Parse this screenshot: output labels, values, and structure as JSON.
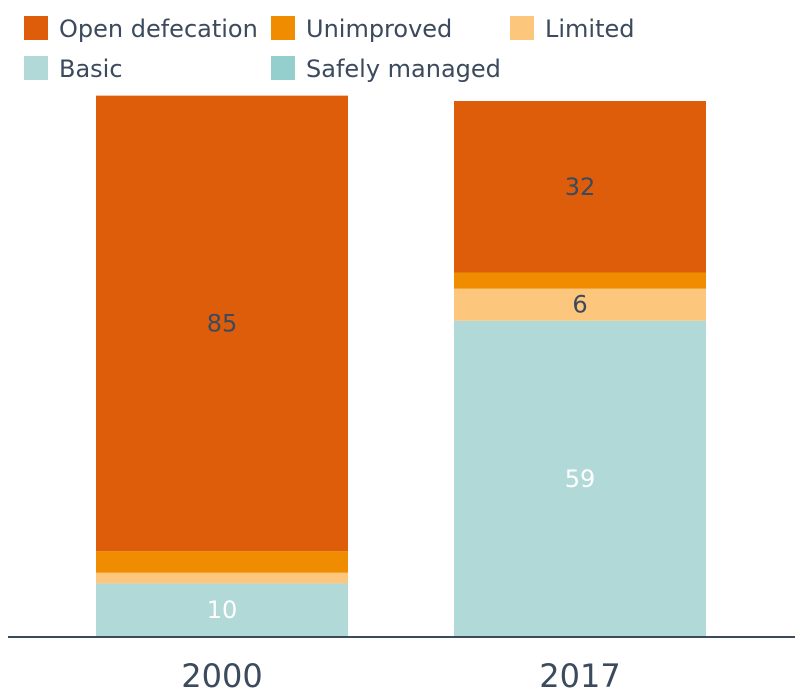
{
  "chart_data": {
    "type": "bar",
    "stacked": true,
    "categories": [
      "2000",
      "2017"
    ],
    "series": [
      {
        "name": "Safely managed",
        "color": "#94cfcd",
        "values": [
          0,
          0
        ]
      },
      {
        "name": "Basic",
        "color": "#b1d9d8",
        "values": [
          10,
          59
        ]
      },
      {
        "name": "Limited",
        "color": "#fcc67d",
        "values": [
          2,
          6
        ]
      },
      {
        "name": "Unimproved",
        "color": "#f08c00",
        "values": [
          4,
          3
        ]
      },
      {
        "name": "Open defecation",
        "color": "#de5d0a",
        "values": [
          85,
          32
        ]
      }
    ],
    "data_labels": [
      {
        "category": "2000",
        "series": "Open defecation",
        "text": "85",
        "color": "#3b4a5c"
      },
      {
        "category": "2000",
        "series": "Basic",
        "text": "10",
        "color": "#ffffff"
      },
      {
        "category": "2017",
        "series": "Open defecation",
        "text": "32",
        "color": "#3b4a5c"
      },
      {
        "category": "2017",
        "series": "Limited",
        "text": "6",
        "color": "#3b4a5c"
      },
      {
        "category": "2017",
        "series": "Basic",
        "text": "59",
        "color": "#ffffff"
      }
    ],
    "legend_order": [
      "Open defecation",
      "Unimproved",
      "Limited",
      "Basic",
      "Safely managed"
    ],
    "legend_position": "top-left",
    "ylim": [
      0,
      100
    ],
    "grid": false,
    "title": "",
    "xlabel": "",
    "ylabel": ""
  }
}
